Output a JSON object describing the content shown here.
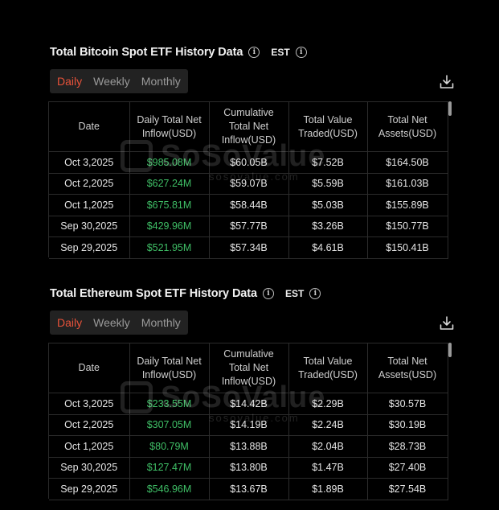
{
  "panels": {
    "btc": {
      "title": "Total Bitcoin Spot ETF History Data",
      "timezone": "EST",
      "tabs": [
        "Daily",
        "Weekly",
        "Monthly"
      ],
      "active_tab": "Daily",
      "headers": [
        "Date",
        "Daily Total Net Inflow(USD)",
        "Cumulative Total Net Inflow(USD)",
        "Total Value Traded(USD)",
        "Total Net Assets(USD)"
      ],
      "rows": [
        [
          "Oct 3,2025",
          "$985.08M",
          "$60.05B",
          "$7.52B",
          "$164.50B"
        ],
        [
          "Oct 2,2025",
          "$627.24M",
          "$59.07B",
          "$5.59B",
          "$161.03B"
        ],
        [
          "Oct 1,2025",
          "$675.81M",
          "$58.44B",
          "$5.03B",
          "$155.89B"
        ],
        [
          "Sep 30,2025",
          "$429.96M",
          "$57.77B",
          "$3.26B",
          "$150.77B"
        ],
        [
          "Sep 29,2025",
          "$521.95M",
          "$57.34B",
          "$4.61B",
          "$150.41B"
        ]
      ]
    },
    "eth": {
      "title": "Total Ethereum Spot ETF History Data",
      "timezone": "EST",
      "tabs": [
        "Daily",
        "Weekly",
        "Monthly"
      ],
      "active_tab": "Daily",
      "headers": [
        "Date",
        "Daily Total Net Inflow(USD)",
        "Cumulative Total Net Inflow(USD)",
        "Total Value Traded(USD)",
        "Total Net Assets(USD)"
      ],
      "rows": [
        [
          "Oct 3,2025",
          "$233.55M",
          "$14.42B",
          "$2.29B",
          "$30.57B"
        ],
        [
          "Oct 2,2025",
          "$307.05M",
          "$14.19B",
          "$2.24B",
          "$30.19B"
        ],
        [
          "Oct 1,2025",
          "$80.79M",
          "$13.88B",
          "$2.04B",
          "$28.73B"
        ],
        [
          "Sep 30,2025",
          "$127.47M",
          "$13.80B",
          "$1.47B",
          "$27.40B"
        ],
        [
          "Sep 29,2025",
          "$546.96M",
          "$13.67B",
          "$1.89B",
          "$27.54B"
        ]
      ]
    }
  },
  "watermark": {
    "brand": "SoSoValue",
    "domain": "sosovalue.com"
  },
  "icons": {
    "info": "info-icon",
    "download": "download-icon"
  },
  "colors": {
    "positive": "#3fbf66",
    "active_tab": "#e8523a",
    "background": "#000000"
  }
}
